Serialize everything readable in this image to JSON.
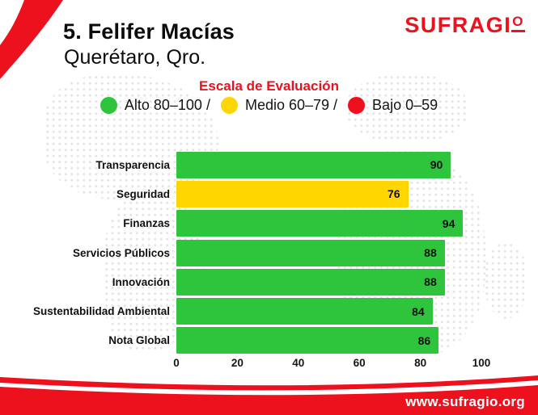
{
  "page": {
    "title": "5. Felifer Macías",
    "subtitle": "Querétaro, Qro."
  },
  "logo": {
    "text": "SUFRAGI",
    "o": "O"
  },
  "legend": {
    "title": "Escala de Evaluación",
    "items": [
      {
        "label": "Alto 80–100 /",
        "color": "#2ec43b"
      },
      {
        "label": "Medio 60–79 /",
        "color": "#ffd600"
      },
      {
        "label": "Bajo 0–59",
        "color": "#ec111c"
      }
    ]
  },
  "chart_data": {
    "type": "bar",
    "orientation": "horizontal",
    "categories": [
      "Transparencia",
      "Seguridad",
      "Finanzas",
      "Servicios Públicos",
      "Innovación",
      "Sustentabilidad Ambiental",
      "Nota Global"
    ],
    "values": [
      90,
      76,
      94,
      88,
      88,
      84,
      86
    ],
    "bar_colors": [
      "#2ec43b",
      "#ffd600",
      "#2ec43b",
      "#2ec43b",
      "#2ec43b",
      "#2ec43b",
      "#2ec43b"
    ],
    "xlim": [
      0,
      100
    ],
    "x_ticks": [
      0,
      20,
      40,
      60,
      80,
      100
    ],
    "value_labels_inside": true,
    "grid": false,
    "legend_position": "top"
  },
  "footer": {
    "url": "www.sufragio.org"
  },
  "colors": {
    "red": "#ec111c",
    "green": "#2ec43b",
    "yellow": "#ffd600",
    "text": "#111111",
    "dots": "#e0e0e4",
    "white": "#ffffff"
  }
}
